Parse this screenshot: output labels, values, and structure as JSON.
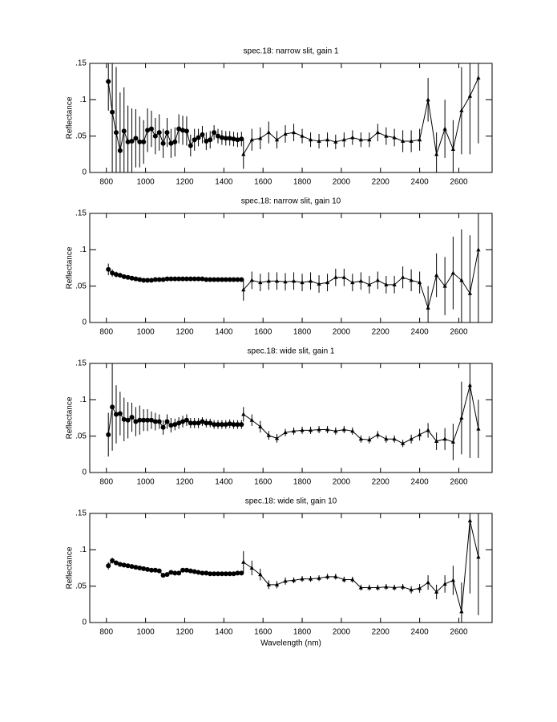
{
  "chart_data": [
    {
      "type": "line",
      "title": "spec.18: narrow slit, gain 1",
      "ylabel": "Reflectance",
      "xlim": [
        715,
        2770
      ],
      "xticks": [
        800,
        1000,
        1200,
        1400,
        1600,
        1800,
        2000,
        2200,
        2400,
        2600
      ],
      "ylim": [
        0,
        0.15
      ],
      "yticks": [
        0,
        {
          "value": 0.05,
          "label": ".05"
        },
        {
          "value": 0.1,
          "label": ".1"
        },
        {
          "value": 0.15,
          "label": ".15"
        }
      ],
      "series": [
        {
          "color": "#000000",
          "marker": "circle",
          "x": [
            810,
            830,
            850,
            870,
            890,
            910,
            930,
            950,
            970,
            990,
            1010,
            1030,
            1050,
            1070,
            1090,
            1110,
            1130,
            1150,
            1170,
            1190,
            1210,
            1230,
            1250,
            1270,
            1290,
            1310,
            1330,
            1350,
            1370,
            1390,
            1410,
            1430,
            1450,
            1470,
            1490
          ],
          "values": [
            0.125,
            0.083,
            0.055,
            0.03,
            0.057,
            0.042,
            0.043,
            0.047,
            0.042,
            0.042,
            0.058,
            0.06,
            0.05,
            0.055,
            0.04,
            0.055,
            0.04,
            0.042,
            0.06,
            0.058,
            0.057,
            0.037,
            0.045,
            0.048,
            0.052,
            0.043,
            0.045,
            0.055,
            0.05,
            0.048,
            0.047,
            0.047,
            0.046,
            0.045,
            0.046
          ],
          "errors": [
            0.04,
            0.1,
            0.09,
            0.08,
            0.06,
            0.05,
            0.045,
            0.04,
            0.035,
            0.03,
            0.03,
            0.025,
            0.025,
            0.025,
            0.02,
            0.02,
            0.02,
            0.02,
            0.02,
            0.02,
            0.02,
            0.015,
            0.015,
            0.012,
            0.012,
            0.012,
            0.012,
            0.01,
            0.01,
            0.01,
            0.01,
            0.01,
            0.01,
            0.01,
            0.01
          ]
        },
        {
          "color": "#000000",
          "marker": "triangle",
          "x": [
            1500,
            1543,
            1586,
            1629,
            1671,
            1714,
            1757,
            1800,
            1843,
            1886,
            1929,
            1971,
            2014,
            2057,
            2100,
            2143,
            2186,
            2229,
            2271,
            2314,
            2357,
            2400,
            2443,
            2486,
            2529,
            2571,
            2614,
            2657,
            2700
          ],
          "values": [
            0.025,
            0.045,
            0.047,
            0.055,
            0.045,
            0.053,
            0.055,
            0.05,
            0.045,
            0.043,
            0.045,
            0.042,
            0.045,
            0.048,
            0.045,
            0.045,
            0.055,
            0.05,
            0.048,
            0.043,
            0.043,
            0.045,
            0.1,
            0.025,
            0.06,
            0.032,
            0.085,
            0.105,
            0.13
          ],
          "errors": [
            0.02,
            0.015,
            0.015,
            0.015,
            0.012,
            0.012,
            0.012,
            0.01,
            0.01,
            0.01,
            0.01,
            0.01,
            0.01,
            0.01,
            0.01,
            0.01,
            0.012,
            0.012,
            0.012,
            0.015,
            0.015,
            0.015,
            0.03,
            0.03,
            0.04,
            0.04,
            0.06,
            0.08,
            0.09
          ]
        }
      ]
    },
    {
      "type": "line",
      "title": "spec.18: narrow slit, gain 10",
      "ylabel": "Reflectance",
      "xlim": [
        715,
        2770
      ],
      "xticks": [
        800,
        1000,
        1200,
        1400,
        1600,
        1800,
        2000,
        2200,
        2400,
        2600
      ],
      "ylim": [
        0,
        0.15
      ],
      "yticks": [
        0,
        {
          "value": 0.05,
          "label": ".05"
        },
        {
          "value": 0.1,
          "label": ".1"
        },
        {
          "value": 0.15,
          "label": ".15"
        }
      ],
      "series": [
        {
          "color": "#000000",
          "marker": "circle",
          "x": [
            810,
            830,
            850,
            870,
            890,
            910,
            930,
            950,
            970,
            990,
            1010,
            1030,
            1050,
            1070,
            1090,
            1110,
            1130,
            1150,
            1170,
            1190,
            1210,
            1230,
            1250,
            1270,
            1290,
            1310,
            1330,
            1350,
            1370,
            1390,
            1410,
            1430,
            1450,
            1470,
            1490
          ],
          "values": [
            0.073,
            0.068,
            0.066,
            0.065,
            0.063,
            0.062,
            0.061,
            0.06,
            0.059,
            0.058,
            0.058,
            0.058,
            0.059,
            0.059,
            0.059,
            0.06,
            0.06,
            0.06,
            0.06,
            0.06,
            0.06,
            0.06,
            0.06,
            0.06,
            0.06,
            0.059,
            0.059,
            0.059,
            0.059,
            0.059,
            0.059,
            0.059,
            0.059,
            0.059,
            0.059
          ],
          "errors": [
            0.008,
            0.005,
            0.004,
            0.003,
            0.003,
            0.002,
            0.002,
            0.002,
            0.002,
            0.002,
            0.002,
            0.002,
            0.002,
            0.002,
            0.002,
            0.002,
            0.002,
            0.002,
            0.002,
            0.002,
            0.002,
            0.002,
            0.002,
            0.002,
            0.002,
            0.002,
            0.002,
            0.002,
            0.002,
            0.002,
            0.002,
            0.002,
            0.002,
            0.002,
            0.002
          ]
        },
        {
          "color": "#000000",
          "marker": "triangle",
          "x": [
            1500,
            1543,
            1586,
            1629,
            1671,
            1714,
            1757,
            1800,
            1843,
            1886,
            1929,
            1971,
            2014,
            2057,
            2100,
            2143,
            2186,
            2229,
            2271,
            2314,
            2357,
            2400,
            2443,
            2486,
            2529,
            2571,
            2614,
            2657,
            2700
          ],
          "values": [
            0.045,
            0.058,
            0.055,
            0.057,
            0.057,
            0.056,
            0.057,
            0.055,
            0.057,
            0.053,
            0.055,
            0.062,
            0.062,
            0.055,
            0.057,
            0.052,
            0.058,
            0.052,
            0.052,
            0.062,
            0.058,
            0.055,
            0.02,
            0.065,
            0.05,
            0.068,
            0.058,
            0.04,
            0.1
          ],
          "errors": [
            0.015,
            0.012,
            0.012,
            0.012,
            0.012,
            0.012,
            0.012,
            0.012,
            0.012,
            0.012,
            0.012,
            0.012,
            0.012,
            0.012,
            0.012,
            0.012,
            0.012,
            0.012,
            0.012,
            0.015,
            0.015,
            0.015,
            0.03,
            0.03,
            0.04,
            0.05,
            0.07,
            0.08,
            0.1
          ]
        }
      ]
    },
    {
      "type": "line",
      "title": "spec.18: wide slit, gain 1",
      "ylabel": "Reflectance",
      "xlim": [
        715,
        2770
      ],
      "xticks": [
        800,
        1000,
        1200,
        1400,
        1600,
        1800,
        2000,
        2200,
        2400,
        2600
      ],
      "ylim": [
        0,
        0.15
      ],
      "yticks": [
        0,
        {
          "value": 0.05,
          "label": ".05"
        },
        {
          "value": 0.1,
          "label": ".1"
        },
        {
          "value": 0.15,
          "label": ".15"
        }
      ],
      "series": [
        {
          "color": "#000000",
          "marker": "circle",
          "x": [
            810,
            830,
            850,
            870,
            890,
            910,
            930,
            950,
            970,
            990,
            1010,
            1030,
            1050,
            1070,
            1090,
            1110,
            1130,
            1150,
            1170,
            1190,
            1210,
            1230,
            1250,
            1270,
            1290,
            1310,
            1330,
            1350,
            1370,
            1390,
            1410,
            1430,
            1450,
            1470,
            1490
          ],
          "values": [
            0.052,
            0.09,
            0.08,
            0.081,
            0.073,
            0.072,
            0.076,
            0.07,
            0.072,
            0.072,
            0.072,
            0.072,
            0.07,
            0.07,
            0.062,
            0.07,
            0.065,
            0.066,
            0.068,
            0.07,
            0.072,
            0.068,
            0.068,
            0.068,
            0.07,
            0.068,
            0.068,
            0.066,
            0.066,
            0.066,
            0.066,
            0.067,
            0.066,
            0.066,
            0.066
          ],
          "errors": [
            0.03,
            0.06,
            0.04,
            0.03,
            0.03,
            0.025,
            0.02,
            0.02,
            0.02,
            0.015,
            0.015,
            0.012,
            0.012,
            0.01,
            0.01,
            0.01,
            0.01,
            0.008,
            0.008,
            0.008,
            0.008,
            0.007,
            0.007,
            0.007,
            0.006,
            0.006,
            0.006,
            0.006,
            0.006,
            0.006,
            0.006,
            0.006,
            0.006,
            0.006,
            0.006
          ]
        },
        {
          "color": "#000000",
          "marker": "triangle",
          "x": [
            1500,
            1543,
            1586,
            1629,
            1671,
            1714,
            1757,
            1800,
            1843,
            1886,
            1929,
            1971,
            2014,
            2057,
            2100,
            2143,
            2186,
            2229,
            2271,
            2314,
            2357,
            2400,
            2443,
            2486,
            2529,
            2571,
            2614,
            2657,
            2700
          ],
          "values": [
            0.08,
            0.072,
            0.063,
            0.051,
            0.047,
            0.055,
            0.057,
            0.058,
            0.058,
            0.059,
            0.059,
            0.057,
            0.059,
            0.057,
            0.046,
            0.045,
            0.052,
            0.046,
            0.046,
            0.04,
            0.046,
            0.052,
            0.058,
            0.043,
            0.046,
            0.042,
            0.075,
            0.12,
            0.06
          ],
          "errors": [
            0.01,
            0.008,
            0.008,
            0.006,
            0.006,
            0.005,
            0.005,
            0.005,
            0.005,
            0.005,
            0.005,
            0.005,
            0.005,
            0.005,
            0.005,
            0.005,
            0.005,
            0.005,
            0.005,
            0.005,
            0.006,
            0.008,
            0.01,
            0.012,
            0.015,
            0.025,
            0.05,
            0.1,
            0.04
          ]
        }
      ]
    },
    {
      "type": "line",
      "title": "spec.18: wide slit, gain 10",
      "ylabel": "Reflectance",
      "xlabel": "Wavelength (nm)",
      "xlim": [
        715,
        2770
      ],
      "xticks": [
        800,
        1000,
        1200,
        1400,
        1600,
        1800,
        2000,
        2200,
        2400,
        2600
      ],
      "ylim": [
        0,
        0.15
      ],
      "yticks": [
        0,
        {
          "value": 0.05,
          "label": ".05"
        },
        {
          "value": 0.1,
          "label": ".1"
        },
        {
          "value": 0.15,
          "label": ".15"
        }
      ],
      "series": [
        {
          "color": "#000000",
          "marker": "circle",
          "x": [
            810,
            830,
            850,
            870,
            890,
            910,
            930,
            950,
            970,
            990,
            1010,
            1030,
            1050,
            1070,
            1090,
            1110,
            1130,
            1150,
            1170,
            1190,
            1210,
            1230,
            1250,
            1270,
            1290,
            1310,
            1330,
            1350,
            1370,
            1390,
            1410,
            1430,
            1450,
            1470,
            1490
          ],
          "values": [
            0.078,
            0.085,
            0.082,
            0.08,
            0.079,
            0.078,
            0.077,
            0.076,
            0.075,
            0.074,
            0.073,
            0.072,
            0.072,
            0.071,
            0.065,
            0.066,
            0.069,
            0.068,
            0.068,
            0.072,
            0.072,
            0.071,
            0.07,
            0.069,
            0.068,
            0.068,
            0.067,
            0.067,
            0.067,
            0.067,
            0.067,
            0.067,
            0.067,
            0.068,
            0.068
          ],
          "errors": [
            0.005,
            0.004,
            0.003,
            0.003,
            0.003,
            0.002,
            0.002,
            0.002,
            0.002,
            0.002,
            0.002,
            0.002,
            0.002,
            0.002,
            0.002,
            0.002,
            0.002,
            0.002,
            0.002,
            0.002,
            0.002,
            0.002,
            0.002,
            0.002,
            0.002,
            0.002,
            0.002,
            0.002,
            0.002,
            0.002,
            0.002,
            0.002,
            0.002,
            0.002,
            0.002
          ]
        },
        {
          "color": "#000000",
          "marker": "triangle",
          "x": [
            1500,
            1543,
            1586,
            1629,
            1671,
            1714,
            1757,
            1800,
            1843,
            1886,
            1929,
            1971,
            2014,
            2057,
            2100,
            2143,
            2186,
            2229,
            2271,
            2314,
            2357,
            2400,
            2443,
            2486,
            2529,
            2571,
            2614,
            2657,
            2700
          ],
          "values": [
            0.083,
            0.075,
            0.066,
            0.052,
            0.052,
            0.057,
            0.058,
            0.06,
            0.06,
            0.061,
            0.063,
            0.063,
            0.059,
            0.059,
            0.048,
            0.048,
            0.048,
            0.049,
            0.048,
            0.049,
            0.045,
            0.047,
            0.055,
            0.042,
            0.053,
            0.058,
            0.015,
            0.14,
            0.09
          ],
          "errors": [
            0.015,
            0.01,
            0.008,
            0.006,
            0.005,
            0.005,
            0.004,
            0.004,
            0.004,
            0.004,
            0.004,
            0.004,
            0.004,
            0.004,
            0.004,
            0.004,
            0.004,
            0.004,
            0.004,
            0.004,
            0.005,
            0.006,
            0.01,
            0.01,
            0.012,
            0.02,
            0.04,
            0.1,
            0.08
          ]
        }
      ]
    }
  ]
}
